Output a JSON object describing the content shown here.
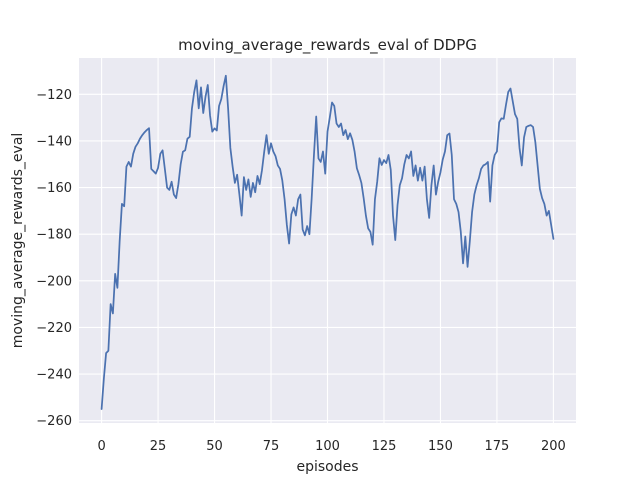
{
  "figure": {
    "background_color": "#ffffff",
    "plot_background_color": "#eaeaf2",
    "grid_color": "#ffffff",
    "text_color": "#262626"
  },
  "chart_data": {
    "type": "line",
    "title": "moving_average_rewards_eval of DDPG",
    "xlabel": "episodes",
    "ylabel": "moving_average_rewards_eval",
    "line_color": "#4C72B0",
    "grid": true,
    "legend": "none",
    "xlim": [
      -10,
      210
    ],
    "ylim": [
      -261,
      -104.4
    ],
    "x_ticks": [
      0,
      25,
      50,
      75,
      100,
      125,
      150,
      175,
      200
    ],
    "x_tick_labels": [
      "0",
      "25",
      "50",
      "75",
      "100",
      "125",
      "150",
      "175",
      "200"
    ],
    "y_ticks": [
      -120,
      -140,
      -160,
      -180,
      -200,
      -220,
      -240,
      -260
    ],
    "y_tick_labels": [
      "−120",
      "−140",
      "−160",
      "−180",
      "−200",
      "−220",
      "−240",
      "−260"
    ],
    "series": [
      {
        "name": "moving_average_rewards_eval",
        "x_start": 0,
        "x_step": 1,
        "values": [
          -255,
          -242,
          -231,
          -230,
          -210,
          -214,
          -197,
          -203,
          -183,
          -167,
          -168,
          -151,
          -149,
          -151,
          -145.5,
          -142.5,
          -141,
          -139,
          -137.5,
          -136.3,
          -135.3,
          -134.5,
          -152,
          -153,
          -154,
          -151.5,
          -145.5,
          -144,
          -152,
          -160,
          -161,
          -157.5,
          -163,
          -164.5,
          -158.5,
          -150,
          -144.6,
          -144,
          -139,
          -138.2,
          -126,
          -119,
          -114,
          -126,
          -117,
          -128,
          -121,
          -116,
          -129,
          -136,
          -134.6,
          -135.5,
          -125,
          -122,
          -116.5,
          -112,
          -126,
          -143,
          -151,
          -158,
          -154.5,
          -163,
          -172,
          -155.5,
          -161,
          -156.5,
          -164,
          -158,
          -162,
          -155,
          -158.5,
          -152.5,
          -144.5,
          -137.5,
          -145.5,
          -141,
          -144.5,
          -146.5,
          -150.5,
          -152,
          -157,
          -165,
          -176,
          -184,
          -171.5,
          -168.5,
          -172,
          -165,
          -163,
          -178,
          -180.5,
          -176.5,
          -180,
          -164.5,
          -146,
          -129.5,
          -147.5,
          -149,
          -144.5,
          -154,
          -136,
          -130,
          -123.5,
          -125,
          -132.5,
          -134,
          -132.5,
          -137.5,
          -135.3,
          -139.2,
          -136.7,
          -139.5,
          -144.6,
          -151.7,
          -154.6,
          -158,
          -164.5,
          -172,
          -177.5,
          -179,
          -184.5,
          -165,
          -157.5,
          -147.4,
          -150.3,
          -148.2,
          -149.5,
          -146,
          -152.4,
          -172,
          -182.5,
          -167.5,
          -159,
          -156,
          -150,
          -146,
          -147.5,
          -144.5,
          -155,
          -150.5,
          -157,
          -151.5,
          -157,
          -151,
          -165,
          -173,
          -159,
          -150.5,
          -163,
          -157.5,
          -153.5,
          -148,
          -144.5,
          -137.5,
          -136.8,
          -146,
          -165,
          -167,
          -170.5,
          -179,
          -192.5,
          -181,
          -194,
          -183,
          -170.5,
          -163,
          -159,
          -156,
          -152,
          -150.5,
          -150,
          -149,
          -166,
          -150.5,
          -146,
          -144.5,
          -132,
          -130.3,
          -130.5,
          -124.5,
          -119,
          -117.5,
          -123,
          -128.5,
          -130.5,
          -143,
          -150.5,
          -138.5,
          -134,
          -133.5,
          -133.2,
          -134,
          -140.5,
          -150.5,
          -160.5,
          -164.5,
          -167,
          -172,
          -170,
          -176,
          -182
        ]
      }
    ]
  }
}
